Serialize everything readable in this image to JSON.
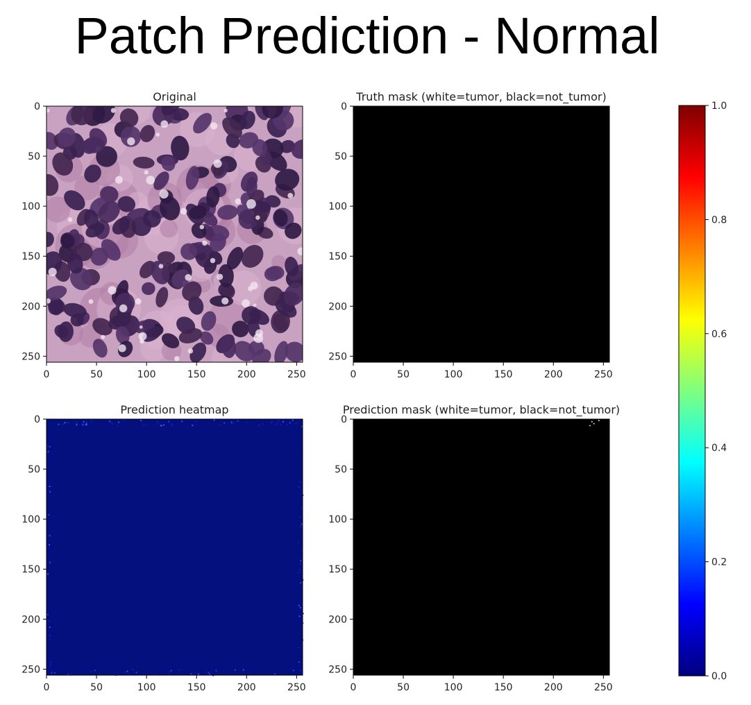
{
  "slide": {
    "title": "Patch Prediction - Normal"
  },
  "chart_data": [
    {
      "type": "heatmap",
      "title": "Original",
      "content": "H&E histology image patch",
      "xlim": [
        0,
        256
      ],
      "ylim": [
        256,
        0
      ],
      "xticks": [
        0,
        50,
        100,
        150,
        200,
        250
      ],
      "yticks": [
        0,
        50,
        100,
        150,
        200,
        250
      ]
    },
    {
      "type": "heatmap",
      "title": "Truth mask (white=tumor, black=not_tumor)",
      "values_summary": "all 0 (not_tumor)",
      "xlim": [
        0,
        256
      ],
      "ylim": [
        256,
        0
      ],
      "xticks": [
        0,
        50,
        100,
        150,
        200,
        250
      ],
      "yticks": [
        0,
        50,
        100,
        150,
        200,
        250
      ]
    },
    {
      "type": "heatmap",
      "title": "Prediction heatmap",
      "values_summary": "near 0.0 everywhere, sparse low speckles near edges",
      "xlim": [
        0,
        256
      ],
      "ylim": [
        256,
        0
      ],
      "xticks": [
        0,
        50,
        100,
        150,
        200,
        250
      ],
      "yticks": [
        0,
        50,
        100,
        150,
        200,
        250
      ]
    },
    {
      "type": "heatmap",
      "title": "Prediction mask (white=tumor, black=not_tumor)",
      "values_summary": "all 0 except a few pixels near top-right",
      "xlim": [
        0,
        256
      ],
      "ylim": [
        256,
        0
      ],
      "xticks": [
        0,
        50,
        100,
        150,
        200,
        250
      ],
      "yticks": [
        0,
        50,
        100,
        150,
        200,
        250
      ]
    }
  ],
  "colorbar": {
    "colormap": "jet",
    "range": [
      0.0,
      1.0
    ],
    "ticks": [
      "0.0",
      "0.2",
      "0.4",
      "0.6",
      "0.8",
      "1.0"
    ],
    "colors": [
      "#00007f",
      "#0000ff",
      "#007fff",
      "#00ffff",
      "#7fff7f",
      "#ffff00",
      "#ff7f00",
      "#ff0000",
      "#7f0000"
    ]
  },
  "colors": {
    "heatmap_low": "#04107e",
    "mask_background": "#000000",
    "stain_background": "#c9a2c2",
    "nucleus": "#3d2350"
  }
}
